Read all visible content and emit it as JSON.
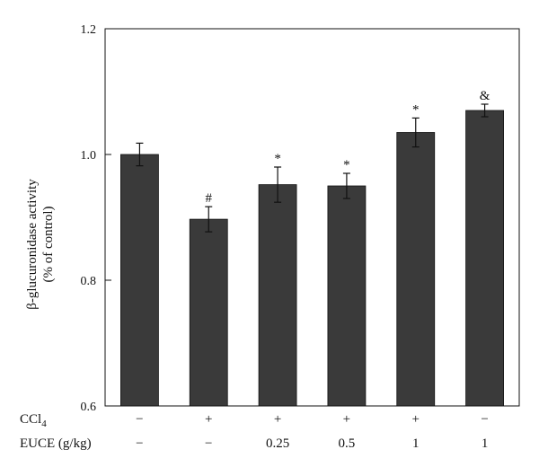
{
  "chart_data": {
    "type": "bar",
    "ylabel_line1": "β-glucuronidase activity",
    "ylabel_line2": "(% of control)",
    "ylim": [
      0.6,
      1.2
    ],
    "yticks": [
      "0.6",
      "0.8",
      "1.0",
      "1.2"
    ],
    "grid": false,
    "bar_color": "#3a3a3a",
    "values": [
      1.0,
      0.897,
      0.952,
      0.95,
      1.035,
      1.07
    ],
    "errors": [
      0.018,
      0.02,
      0.028,
      0.02,
      0.023,
      0.01
    ],
    "annotations": [
      "",
      "#",
      "*",
      "*",
      "*",
      "&"
    ],
    "row_labels": {
      "ccl4_main": "CCl",
      "ccl4_sub": "4",
      "euce": "EUCE (g/kg)"
    },
    "ccl4_row": [
      "−",
      "+",
      "+",
      "+",
      "+",
      "−"
    ],
    "euce_row": [
      "−",
      "−",
      "0.25",
      "0.5",
      "1",
      "1"
    ]
  }
}
